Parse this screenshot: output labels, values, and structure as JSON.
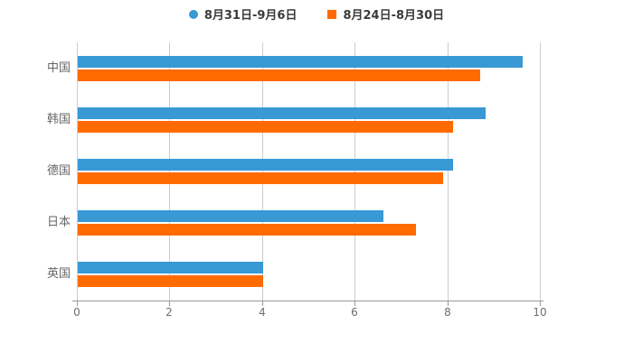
{
  "legend": {
    "items": [
      {
        "label": "8月31日-9月6日",
        "color": "#3899D5",
        "marker": "circle"
      },
      {
        "label": "8月24日-8月30日",
        "color": "#FF6B00",
        "marker": "square"
      }
    ]
  },
  "chart_data": {
    "type": "bar",
    "orientation": "horizontal",
    "title": "",
    "xlabel": "",
    "ylabel": "",
    "categories": [
      "中国",
      "韩国",
      "德国",
      "日本",
      "英国"
    ],
    "series": [
      {
        "name": "8月31日-9月6日",
        "color": "#3899D5",
        "values": [
          9.6,
          8.8,
          8.1,
          6.6,
          4.0
        ]
      },
      {
        "name": "8月24日-8月30日",
        "color": "#FF6B00",
        "values": [
          8.7,
          8.1,
          7.9,
          7.3,
          4.0
        ]
      }
    ],
    "xlim": [
      0,
      10
    ],
    "x_ticks": [
      0,
      2,
      4,
      6,
      8,
      10
    ],
    "grid": "vertical-only",
    "legend_position": "top-center"
  },
  "style": {
    "gridline_color": "#cccccc",
    "axis_color": "#9a9a9a",
    "tick_label_color": "#6e6e6e",
    "category_label_color": "#666666",
    "legend_text_color": "#3a3a3a",
    "background": "#ffffff"
  }
}
